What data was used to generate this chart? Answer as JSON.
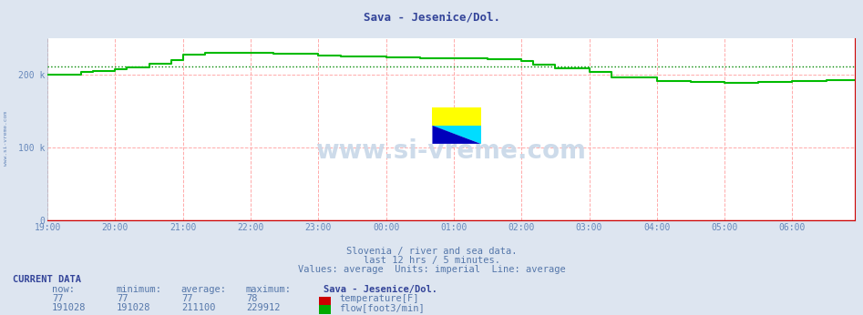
{
  "title": "Sava - Jesenice/Dol.",
  "bg_color": "#dde5f0",
  "plot_bg_color": "#ffffff",
  "grid_color": "#ffaaaa",
  "x_labels": [
    "19:00",
    "20:00",
    "21:00",
    "22:00",
    "23:00",
    "00:00",
    "01:00",
    "02:00",
    "03:00",
    "04:00",
    "05:00",
    "06:00"
  ],
  "total_points": 144,
  "ylim": [
    0,
    250000
  ],
  "yticks": [
    0,
    100000,
    200000
  ],
  "ytick_labels": [
    "0",
    "100 k",
    "200 k"
  ],
  "avg_line_value": 211100,
  "avg_line_color": "#008800",
  "temp_color": "#cc0000",
  "flow_color": "#00bb00",
  "subtitle1": "Slovenia / river and sea data.",
  "subtitle2": "last 12 hrs / 5 minutes.",
  "subtitle3": "Values: average  Units: imperial  Line: average",
  "current_data_label": "CURRENT DATA",
  "col_headers": [
    "now:",
    "minimum:",
    "average:",
    "maximum:",
    "Sava - Jesenice/Dol."
  ],
  "temp_row": [
    "77",
    "77",
    "77",
    "78",
    "temperature[F]"
  ],
  "flow_row": [
    "191028",
    "191028",
    "211100",
    "229912",
    "flow[foot3/min]"
  ],
  "watermark": "www.si-vreme.com",
  "left_label": "www.si-vreme.com",
  "swatch_temp_color": "#cc0000",
  "swatch_flow_color": "#00aa00"
}
